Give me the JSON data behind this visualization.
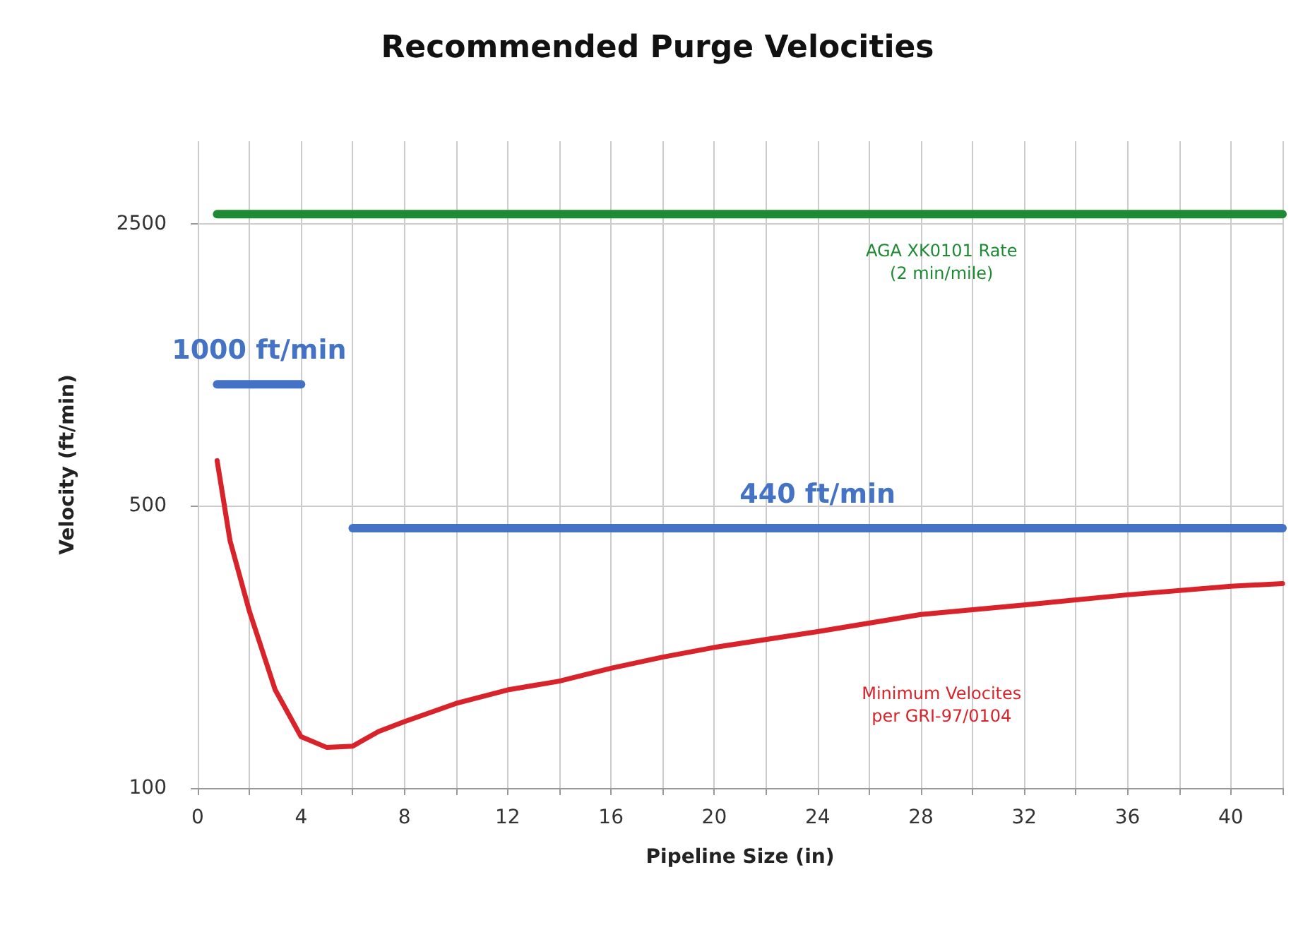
{
  "chart_data": {
    "type": "line",
    "title": "Recommended Purge Velocities",
    "xlabel": "Pipeline Size (in)",
    "ylabel": "Velocity (ft/min)",
    "log": "y",
    "grid": true,
    "marker": "none",
    "line_style": "solid",
    "xlim": [
      0,
      42
    ],
    "ylim": [
      100,
      4000
    ],
    "xticks": [
      0,
      {
        "value": 2,
        "label": null
      },
      4,
      {
        "value": 6,
        "label": null
      },
      8,
      {
        "value": 10,
        "label": null
      },
      12,
      {
        "value": 14,
        "label": null
      },
      16,
      {
        "value": 18,
        "label": null
      },
      20,
      {
        "value": 22,
        "label": null
      },
      24,
      {
        "value": 26,
        "label": null
      },
      28,
      {
        "value": 30,
        "label": null
      },
      32,
      {
        "value": 34,
        "label": null
      },
      36,
      {
        "value": 38,
        "label": null
      },
      40,
      {
        "value": 42,
        "label": null
      }
    ],
    "yticks": [
      100,
      500,
      2500
    ],
    "series": [
      {
        "name": "AGA XK0101 Rate\n(2 min/mile)",
        "color": "#1e8a34",
        "x": [
          0.75,
          42
        ],
        "values": [
          2640,
          2640
        ]
      },
      {
        "name": "1000 ft/min",
        "color": "#4472c4",
        "x": [
          0.75,
          4
        ],
        "values": [
          1000,
          1000
        ]
      },
      {
        "name": "440 ft/min",
        "color": "#4472c4",
        "x": [
          6,
          42
        ],
        "values": [
          440,
          440
        ]
      },
      {
        "name": "Minimum Velocites\nper GRI-97/0104",
        "color": "#d9232b",
        "x": [
          0.75,
          1.25,
          2,
          3,
          4,
          5,
          6,
          7,
          8,
          10,
          12,
          14,
          16,
          18,
          20,
          24,
          28,
          32,
          36,
          40,
          42
        ],
        "values": [
          647,
          410,
          274,
          175,
          134,
          126,
          127,
          138,
          146,
          162,
          175,
          184,
          198,
          211,
          223,
          244,
          269,
          284,
          301,
          316,
          321
        ]
      }
    ]
  }
}
